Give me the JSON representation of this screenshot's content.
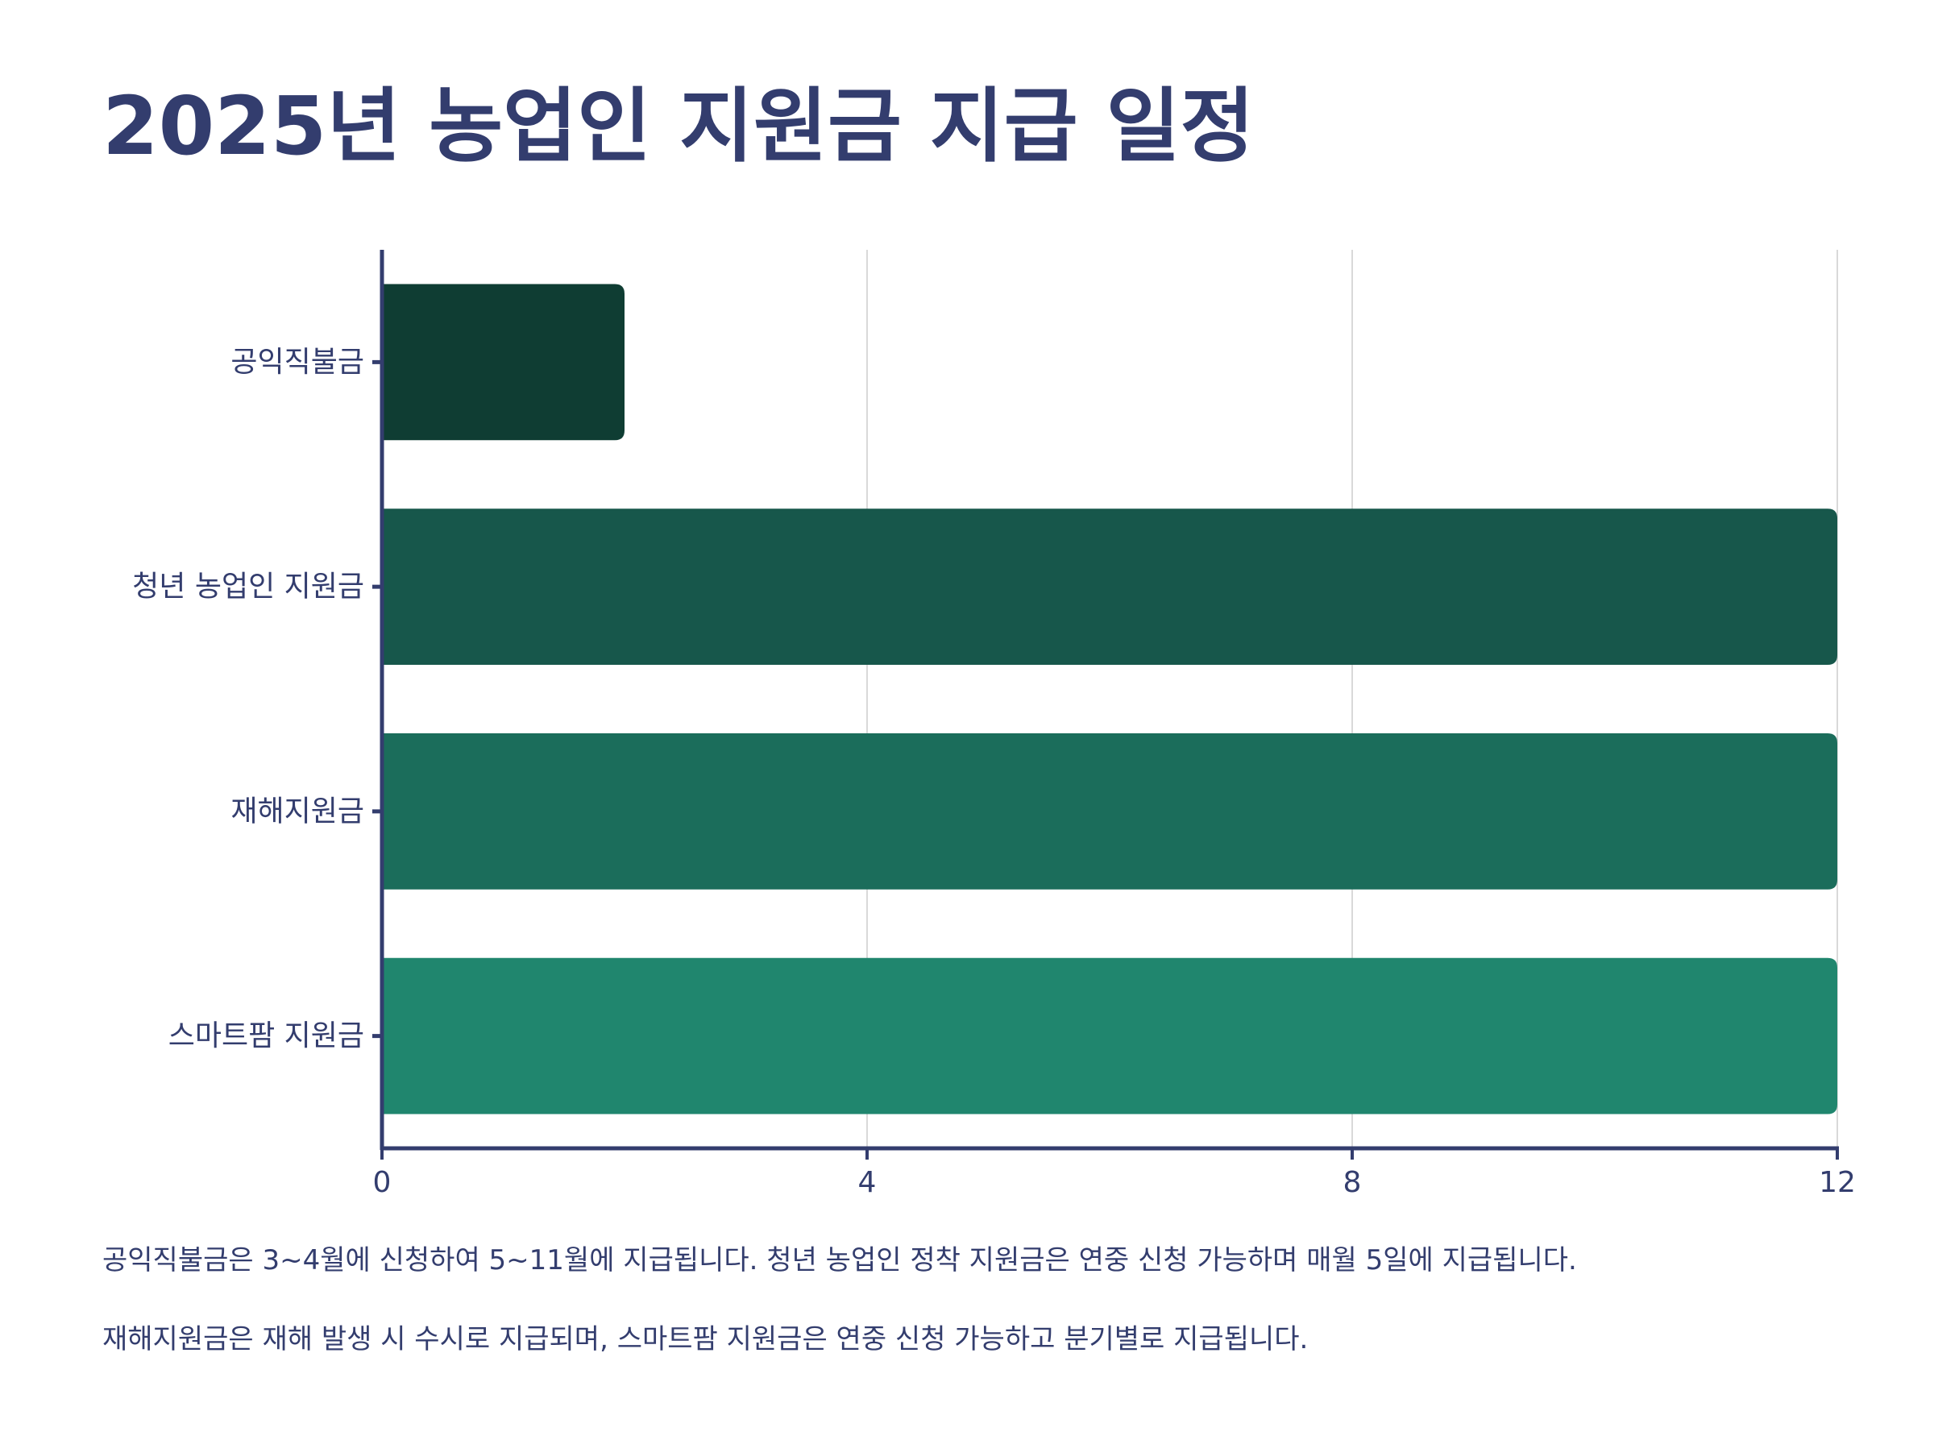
{
  "chart_data": {
    "type": "bar",
    "orientation": "horizontal",
    "title": "2025년 농업인 지원금 지급 일정",
    "categories": [
      "공익직불금",
      "청년 농업인 지원금",
      "재해지원금",
      "스마트팜 지원금"
    ],
    "values": [
      2,
      12,
      12,
      12
    ],
    "colors": [
      "#0f3d33",
      "#17574b",
      "#1b6d5b",
      "#20866e"
    ],
    "xlim": [
      0,
      12
    ],
    "xticks": [
      0,
      4,
      8,
      12
    ],
    "xlabel": "",
    "ylabel": "",
    "grid": true,
    "legend": "none"
  },
  "notes": [
    "공익직불금은 3~4월에 신청하여 5~11월에 지급됩니다. 청년 농업인 정착 지원금은 연중 신청 가능하며 매월 5일에 지급됩니다.",
    "재해지원금은 재해 발생 시 수시로 지급되며, 스마트팜 지원금은 연중 신청 가능하고 분기별로 지급됩니다."
  ],
  "colors": {
    "axis": "#333d6e",
    "grid": "#d9d9d9",
    "text": "#333d6e"
  }
}
